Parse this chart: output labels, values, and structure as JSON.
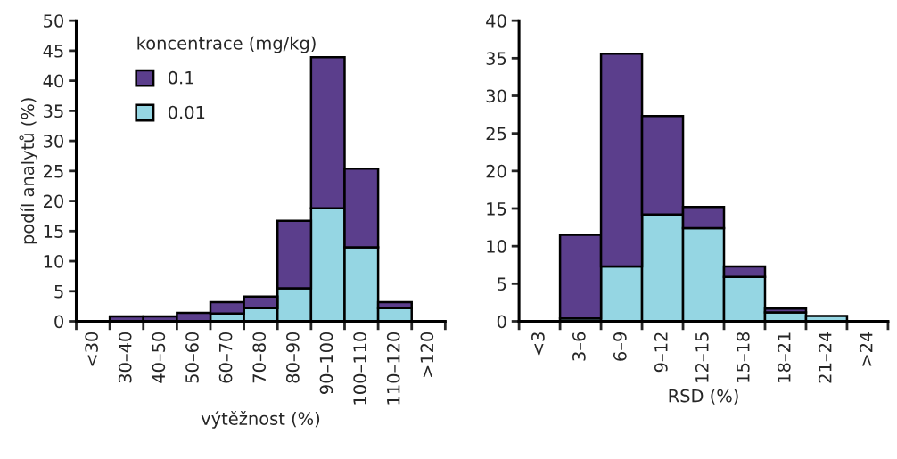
{
  "chart_data": [
    {
      "type": "bar",
      "stacked": true,
      "xlabel": "výtěžnost (%)",
      "ylabel": "podíl analytů (%)",
      "legend_title": "koncentrace (mg/kg)",
      "legend": "top left",
      "categories": [
        "<30",
        "30–40",
        "40–50",
        "50–60",
        "60–70",
        "70–80",
        "80–90",
        "90–100",
        "100–110",
        "110–120",
        ">120"
      ],
      "series": [
        {
          "name": "0.01",
          "color": "#95d6e3",
          "values": [
            null,
            null,
            null,
            null,
            1.3,
            2.2,
            5.5,
            18.8,
            12.3,
            2.2,
            null
          ]
        },
        {
          "name": "0.1",
          "color": "#5b3e8c",
          "values": [
            null,
            0.8,
            0.8,
            1.4,
            1.9,
            1.9,
            11.2,
            25.1,
            13.1,
            1.0,
            null
          ]
        }
      ],
      "ylim": [
        0,
        50
      ],
      "yticks": [
        0,
        5,
        10,
        15,
        20,
        25,
        30,
        35,
        40,
        45,
        50
      ]
    },
    {
      "type": "bar",
      "stacked": true,
      "xlabel": "RSD (%)",
      "categories": [
        "<3",
        "3–6",
        "6–9",
        "9–12",
        "12–15",
        "15–18",
        "18–21",
        "21–24",
        ">24"
      ],
      "series": [
        {
          "color": "#95d6e3",
          "values": [
            null,
            0.4,
            7.3,
            14.2,
            12.4,
            5.9,
            1.2,
            0.7,
            null
          ]
        },
        {
          "color": "#5b3e8c",
          "values": [
            null,
            11.1,
            28.3,
            13.1,
            2.8,
            1.4,
            0.5,
            null,
            null
          ]
        }
      ],
      "ylim": [
        0,
        40
      ],
      "yticks": [
        0,
        5,
        10,
        15,
        20,
        25,
        30,
        35,
        40
      ]
    }
  ]
}
